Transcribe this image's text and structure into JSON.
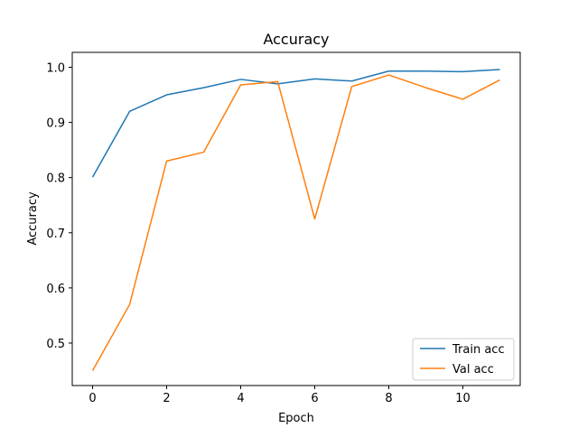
{
  "chart_data": {
    "type": "line",
    "title": "Accuracy",
    "xlabel": "Epoch",
    "ylabel": "Accuracy",
    "xlim": [
      -0.55,
      11.55
    ],
    "ylim": [
      0.423,
      1.027
    ],
    "xticks": [
      0,
      2,
      4,
      6,
      8,
      10
    ],
    "yticks": [
      0.5,
      0.6,
      0.7,
      0.8,
      0.9,
      1.0
    ],
    "ytick_labels": [
      "0.5",
      "0.6",
      "0.7",
      "0.8",
      "0.9",
      "1.0"
    ],
    "grid": false,
    "legend_position": "lower-right",
    "x": [
      0,
      1,
      2,
      3,
      4,
      5,
      6,
      7,
      8,
      9,
      10,
      11
    ],
    "series": [
      {
        "name": "Train acc",
        "color": "#1f77b4",
        "values": [
          0.801,
          0.92,
          0.95,
          0.963,
          0.978,
          0.97,
          0.979,
          0.975,
          0.993,
          0.993,
          0.992,
          0.996
        ]
      },
      {
        "name": "Val acc",
        "color": "#ff7f0e",
        "values": [
          0.45,
          0.57,
          0.83,
          0.846,
          0.968,
          0.974,
          0.725,
          0.965,
          0.986,
          0.963,
          0.942,
          0.977
        ]
      }
    ]
  }
}
